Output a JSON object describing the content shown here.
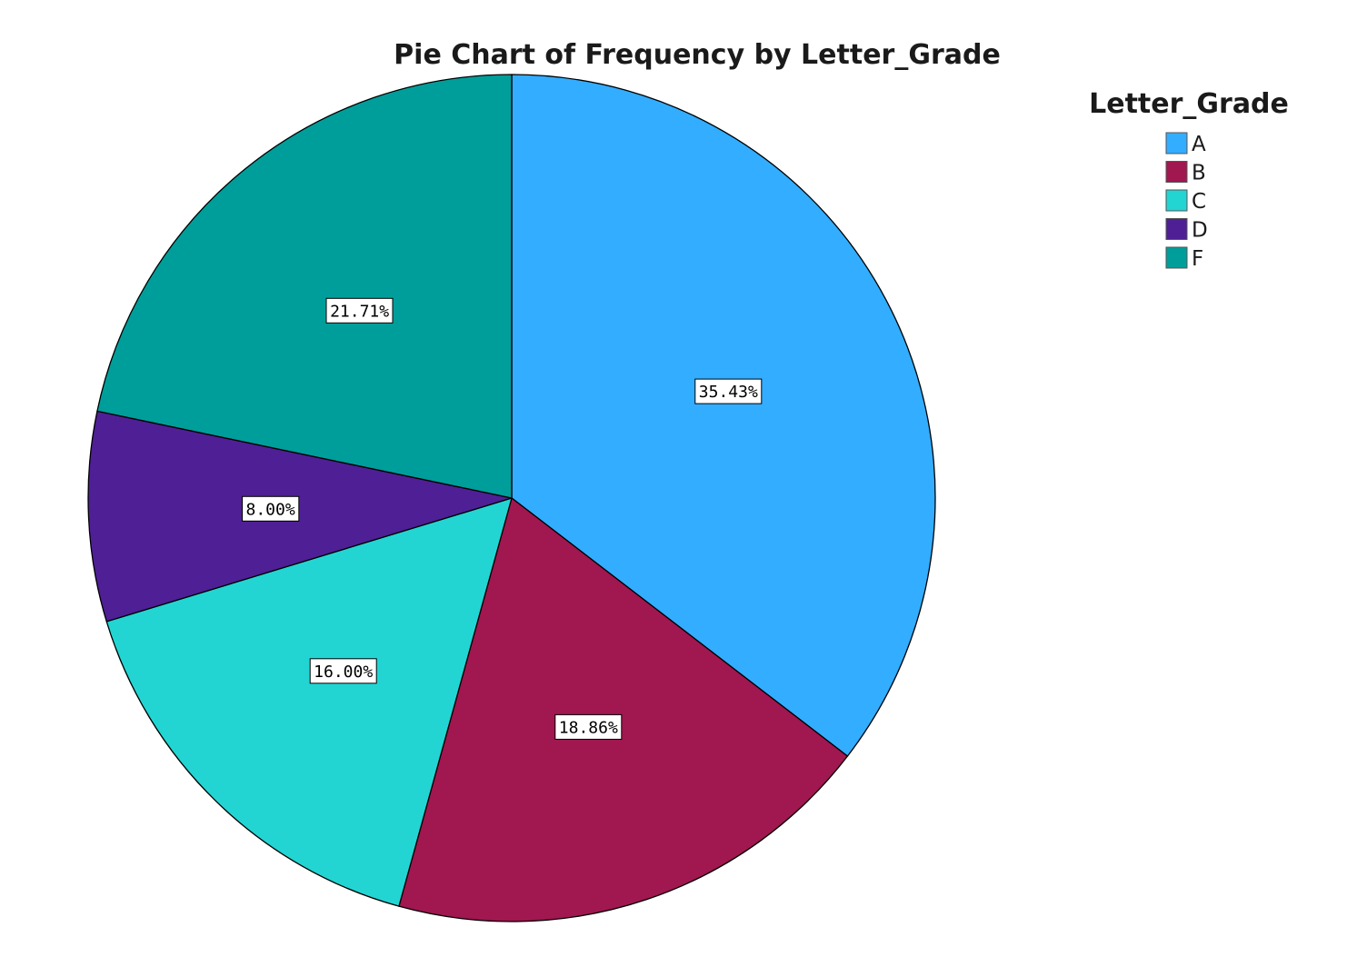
{
  "chart_data": {
    "type": "pie",
    "title": "Pie Chart of Frequency by Letter_Grade",
    "legend": {
      "title": "Letter_Grade",
      "placement": "top-right"
    },
    "start_angle_deg": 0,
    "direction": "clockwise",
    "slices": [
      {
        "label": "A",
        "value": 35.43,
        "display": "35.43%",
        "color": "#33ADFF"
      },
      {
        "label": "B",
        "value": 18.86,
        "display": "18.86%",
        "color": "#A1174F"
      },
      {
        "label": "C",
        "value": 16.0,
        "display": "16.00%",
        "color": "#22D5D3"
      },
      {
        "label": "D",
        "value": 8.0,
        "display": "8.00%",
        "color": "#4F1F95"
      },
      {
        "label": "F",
        "value": 21.71,
        "display": "21.71%",
        "color": "#009E9A"
      }
    ]
  }
}
